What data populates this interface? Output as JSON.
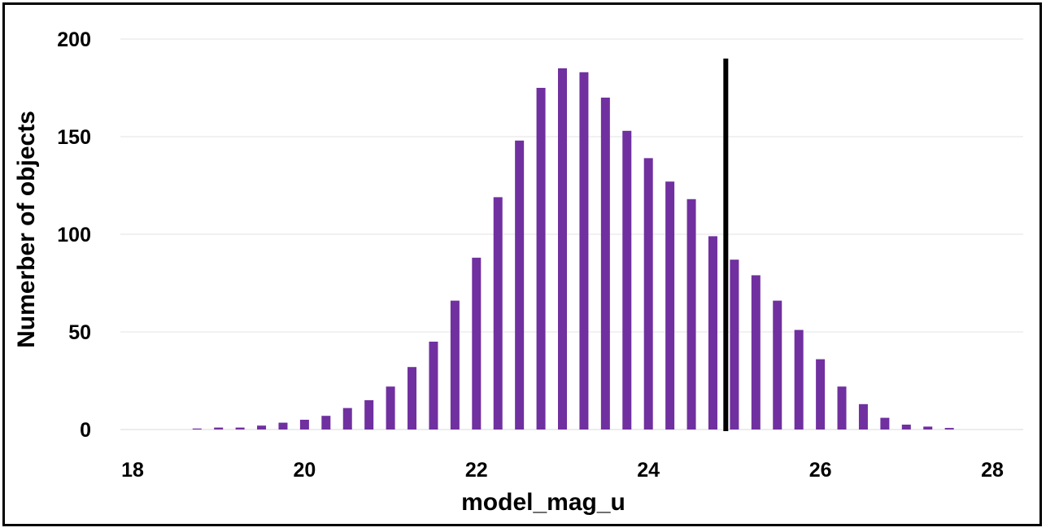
{
  "chart_data": {
    "type": "bar",
    "xlabel": "model_mag_u",
    "ylabel": "Numerber of objects",
    "xlim": [
      18,
      28
    ],
    "ylim": [
      0,
      200
    ],
    "x_ticks": [
      18,
      20,
      22,
      24,
      26,
      28
    ],
    "y_ticks": [
      0,
      50,
      100,
      150,
      200
    ],
    "grid": "horizontal",
    "legend": "none",
    "bar_color": "#7030A0",
    "bin_width": 0.25,
    "x": [
      18.75,
      19.0,
      19.25,
      19.5,
      19.75,
      20.0,
      20.25,
      20.5,
      20.75,
      21.0,
      21.25,
      21.5,
      21.75,
      22.0,
      22.25,
      22.5,
      22.75,
      23.0,
      23.25,
      23.5,
      23.75,
      24.0,
      24.25,
      24.5,
      24.75,
      25.0,
      25.25,
      25.5,
      25.75,
      26.0,
      26.25,
      26.5,
      26.75,
      27.0,
      27.25,
      27.5
    ],
    "values": [
      0.5,
      1,
      1,
      2,
      3.5,
      5,
      7,
      11,
      15,
      22,
      32,
      45,
      66,
      88,
      119,
      148,
      175,
      185,
      183,
      170,
      153,
      139,
      127,
      118,
      99,
      87,
      79,
      66,
      51,
      36,
      22,
      13,
      6,
      2.5,
      1.5,
      0.8
    ],
    "annotations": [
      {
        "type": "vertical_line",
        "x": 24.9,
        "y_top": 190,
        "color": "#000000"
      }
    ]
  }
}
